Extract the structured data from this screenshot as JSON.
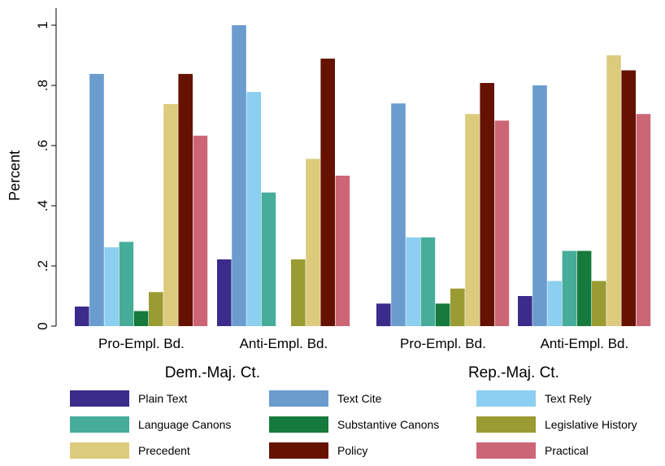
{
  "chart_data": {
    "type": "bar",
    "ylabel": "Percent",
    "ylim": [
      0,
      1
    ],
    "yticks": [
      0,
      0.2,
      0.4,
      0.6,
      0.8,
      1
    ],
    "ytick_labels": [
      "0",
      ".2",
      ".4",
      ".6",
      ".8",
      "1"
    ],
    "grid": false,
    "legend_position": "bottom",
    "super_groups": [
      {
        "label": "Dem.-Maj. Ct.",
        "groups": [
          "Pro-Empl. Bd.",
          "Anti-Empl. Bd."
        ]
      },
      {
        "label": "Rep.-Maj. Ct.",
        "groups": [
          "Pro-Empl. Bd.",
          "Anti-Empl. Bd."
        ]
      }
    ],
    "series": [
      {
        "name": "Plain Text",
        "color": "#3b2c8c",
        "values": [
          0.065,
          0.222,
          0.075,
          0.1
        ]
      },
      {
        "name": "Text Cite",
        "color": "#6a9cce",
        "values": [
          0.838,
          1.0,
          0.74,
          0.8
        ]
      },
      {
        "name": "Text Rely",
        "color": "#8ccff0",
        "values": [
          0.262,
          0.778,
          0.295,
          0.15
        ]
      },
      {
        "name": "Language Canons",
        "color": "#46ad9a",
        "values": [
          0.28,
          0.444,
          0.295,
          0.25
        ]
      },
      {
        "name": "Substantive Canons",
        "color": "#157a3b",
        "values": [
          0.05,
          0.0,
          0.075,
          0.25
        ]
      },
      {
        "name": "Legislative History",
        "color": "#9b9b33",
        "values": [
          0.113,
          0.222,
          0.125,
          0.15
        ]
      },
      {
        "name": "Precedent",
        "color": "#dccb7d",
        "values": [
          0.738,
          0.556,
          0.705,
          0.9
        ]
      },
      {
        "name": "Policy",
        "color": "#661200",
        "values": [
          0.838,
          0.889,
          0.808,
          0.85
        ]
      },
      {
        "name": "Practical",
        "color": "#cc6677",
        "values": [
          0.633,
          0.5,
          0.683,
          0.705
        ]
      }
    ]
  }
}
